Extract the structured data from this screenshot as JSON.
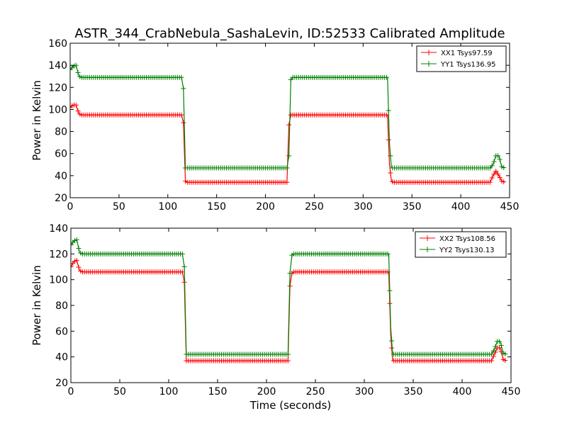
{
  "figure": {
    "title": "ASTR_344_CrabNebula_SashaLevin, ID:52533 Calibrated Amplitude"
  },
  "chart_data": [
    {
      "type": "line",
      "title": "ASTR_344_CrabNebula_SashaLevin, ID:52533 Calibrated Amplitude",
      "xlabel": "",
      "ylabel": "Power in Kelvin",
      "xlim": [
        0,
        450
      ],
      "ylim": [
        20,
        160
      ],
      "xticks": [
        "0",
        "50",
        "100",
        "150",
        "200",
        "250",
        "300",
        "350",
        "400",
        "450"
      ],
      "yticks": [
        "20",
        "40",
        "60",
        "80",
        "100",
        "120",
        "140",
        "160"
      ],
      "grid": false,
      "legend_position": "top-right",
      "marker": "+",
      "series": [
        {
          "name": "XX1 Tsys97.59",
          "color": "#ff0000",
          "x": [
            0,
            3,
            6,
            9,
            12,
            114,
            116,
            118,
            120,
            222,
            224,
            226,
            228,
            325,
            327,
            329,
            331,
            430,
            433,
            436,
            439,
            442,
            445
          ],
          "y": [
            102,
            104,
            104,
            96,
            95,
            95,
            88,
            35,
            34,
            34,
            86,
            95,
            95,
            95,
            50,
            35,
            34,
            34,
            40,
            44,
            40,
            35,
            34
          ]
        },
        {
          "name": "YY1 Tsys136.95",
          "color": "#008000",
          "x": [
            0,
            3,
            6,
            9,
            12,
            114,
            116,
            118,
            120,
            222,
            224,
            226,
            228,
            325,
            327,
            329,
            331,
            430,
            433,
            436,
            439,
            442,
            445
          ],
          "y": [
            136,
            139,
            140,
            130,
            129,
            129,
            119,
            47,
            47,
            47,
            58,
            127,
            129,
            129,
            69,
            47,
            47,
            47,
            50,
            58,
            58,
            48,
            47
          ]
        }
      ]
    },
    {
      "type": "line",
      "title": "",
      "xlabel": "Time (seconds)",
      "ylabel": "Power in Kelvin",
      "xlim": [
        0,
        450
      ],
      "ylim": [
        20,
        140
      ],
      "xticks": [
        "0",
        "50",
        "100",
        "150",
        "200",
        "250",
        "300",
        "350",
        "400",
        "450"
      ],
      "yticks": [
        "20",
        "40",
        "60",
        "80",
        "100",
        "120",
        "140"
      ],
      "grid": false,
      "legend_position": "top-right",
      "marker": "+",
      "series": [
        {
          "name": "XX2 Tsys108.56",
          "color": "#ff0000",
          "x": [
            0,
            3,
            6,
            9,
            12,
            114,
            116,
            118,
            120,
            222,
            224,
            226,
            228,
            325,
            327,
            329,
            331,
            430,
            433,
            436,
            439,
            442,
            445
          ],
          "y": [
            110,
            114,
            115,
            107,
            106,
            106,
            98,
            37,
            37,
            37,
            95,
            105,
            106,
            106,
            57,
            37,
            37,
            37,
            42,
            47,
            47,
            38,
            37
          ]
        },
        {
          "name": "YY2 Tsys130.13",
          "color": "#008000",
          "x": [
            0,
            3,
            6,
            9,
            12,
            114,
            116,
            118,
            120,
            222,
            224,
            226,
            228,
            325,
            327,
            329,
            331,
            430,
            433,
            436,
            439,
            442,
            445
          ],
          "y": [
            127,
            130,
            131,
            121,
            120,
            120,
            110,
            42,
            42,
            42,
            105,
            119,
            120,
            120,
            63,
            42,
            42,
            42,
            46,
            52,
            52,
            43,
            42
          ]
        }
      ]
    }
  ]
}
